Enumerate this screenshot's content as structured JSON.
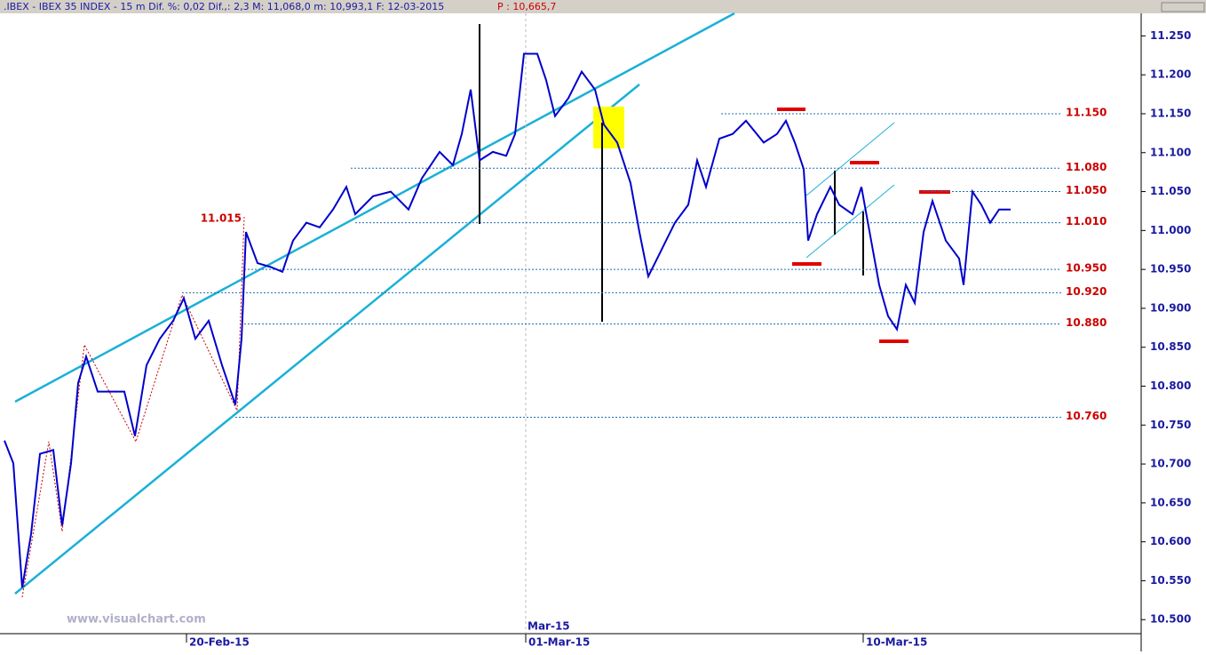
{
  "chart_data": {
    "type": "line",
    "title": ".IBEX - IBEX 35 INDEX -  15 m Dif. %: 0,02 Dif.,: 2,3 M: 11,068,0 m: 10,993,1 F: 12-03-2015",
    "subtitle": "P : 10,665,7",
    "watermark": "www.visualchart.com",
    "color": "#0000cc",
    "x": [
      5,
      15,
      25,
      35,
      45,
      60,
      70,
      80,
      88,
      97,
      110,
      125,
      140,
      152,
      165,
      180,
      195,
      207,
      220,
      235,
      250,
      265,
      272,
      277,
      290,
      305,
      318,
      330,
      345,
      360,
      375,
      390,
      400,
      420,
      440,
      460,
      475,
      495,
      510,
      520,
      530,
      540,
      555,
      570,
      580,
      590,
      605,
      615,
      625,
      640,
      655,
      670,
      680,
      695,
      710,
      720,
      730,
      740,
      750,
      760,
      775,
      785,
      795,
      810,
      825,
      840,
      860,
      875,
      885,
      895,
      905,
      910,
      920,
      935,
      945,
      960,
      970,
      980,
      990,
      1000,
      1010,
      1020,
      1030,
      1040,
      1050,
      1065,
      1080,
      1085,
      1095,
      1105,
      1115,
      1125,
      1138
    ],
    "values": [
      10730,
      10701,
      10541,
      10610,
      10713,
      10718,
      10621,
      10701,
      10804,
      10838,
      10793,
      10793,
      10793,
      10736,
      10827,
      10861,
      10884,
      10913,
      10861,
      10884,
      10827,
      10776,
      10861,
      10998,
      10958,
      10953,
      10947,
      10987,
      11010,
      11004,
      11027,
      11056,
      11021,
      11044,
      11050,
      11027,
      11067,
      11101,
      11084,
      11124,
      11181,
      11090,
      11101,
      11096,
      11124,
      11227,
      11227,
      11193,
      11147,
      11170,
      11204,
      11181,
      11136,
      11113,
      11061,
      10998,
      10941,
      10964,
      10987,
      11010,
      11033,
      11090,
      11056,
      11118,
      11124,
      11141,
      11113,
      11124,
      11141,
      11113,
      11079,
      10987,
      11021,
      11056,
      11033,
      11021,
      11056,
      10993,
      10930,
      10890,
      10873,
      10930,
      10907,
      10998,
      11038,
      10987,
      10964,
      10930,
      11050,
      11033,
      11010,
      11027,
      11027
    ],
    "xlim": [
      0,
      1285
    ],
    "ylim": [
      10482,
      11279
    ],
    "yticks": [
      {
        "value": 10500,
        "label": "10.500"
      },
      {
        "value": 10550,
        "label": "10.550"
      },
      {
        "value": 10600,
        "label": "10.600"
      },
      {
        "value": 10650,
        "label": "10.650"
      },
      {
        "value": 10700,
        "label": "10.700"
      },
      {
        "value": 10750,
        "label": "10.750"
      },
      {
        "value": 10800,
        "label": "10.800"
      },
      {
        "value": 10850,
        "label": "10.850"
      },
      {
        "value": 10900,
        "label": "10.900"
      },
      {
        "value": 10950,
        "label": "10.950"
      },
      {
        "value": 11000,
        "label": "11.000"
      },
      {
        "value": 11050,
        "label": "11.050"
      },
      {
        "value": 11100,
        "label": "11.100"
      },
      {
        "value": 11150,
        "label": "11.150"
      },
      {
        "value": 11200,
        "label": "11.200"
      },
      {
        "value": 11250,
        "label": "11.250"
      }
    ],
    "xticks": [
      {
        "value": 210,
        "label": "20-Feb-15"
      },
      {
        "value": 592,
        "label": "01-Mar-15"
      },
      {
        "value": 972,
        "label": "10-Mar-15"
      }
    ],
    "period_labels": [
      {
        "value": 592,
        "label": "Mar-15"
      }
    ],
    "levels": [
      {
        "value": 11150,
        "label": "11.150",
        "start": 812
      },
      {
        "value": 11080,
        "label": "11.080",
        "start": 395
      },
      {
        "value": 11050,
        "label": "11.050",
        "start": 1040
      },
      {
        "value": 11010,
        "label": "11.010",
        "start": 400
      },
      {
        "value": 10950,
        "label": "10.950",
        "start": 275
      },
      {
        "value": 10920,
        "label": "10.920",
        "start": 205
      },
      {
        "value": 10880,
        "label": "10.880",
        "start": 275
      },
      {
        "value": 10760,
        "label": "10.760",
        "start": 265
      }
    ],
    "annotations": [
      {
        "value": 11015,
        "label": "11.015",
        "x": 272
      }
    ]
  }
}
